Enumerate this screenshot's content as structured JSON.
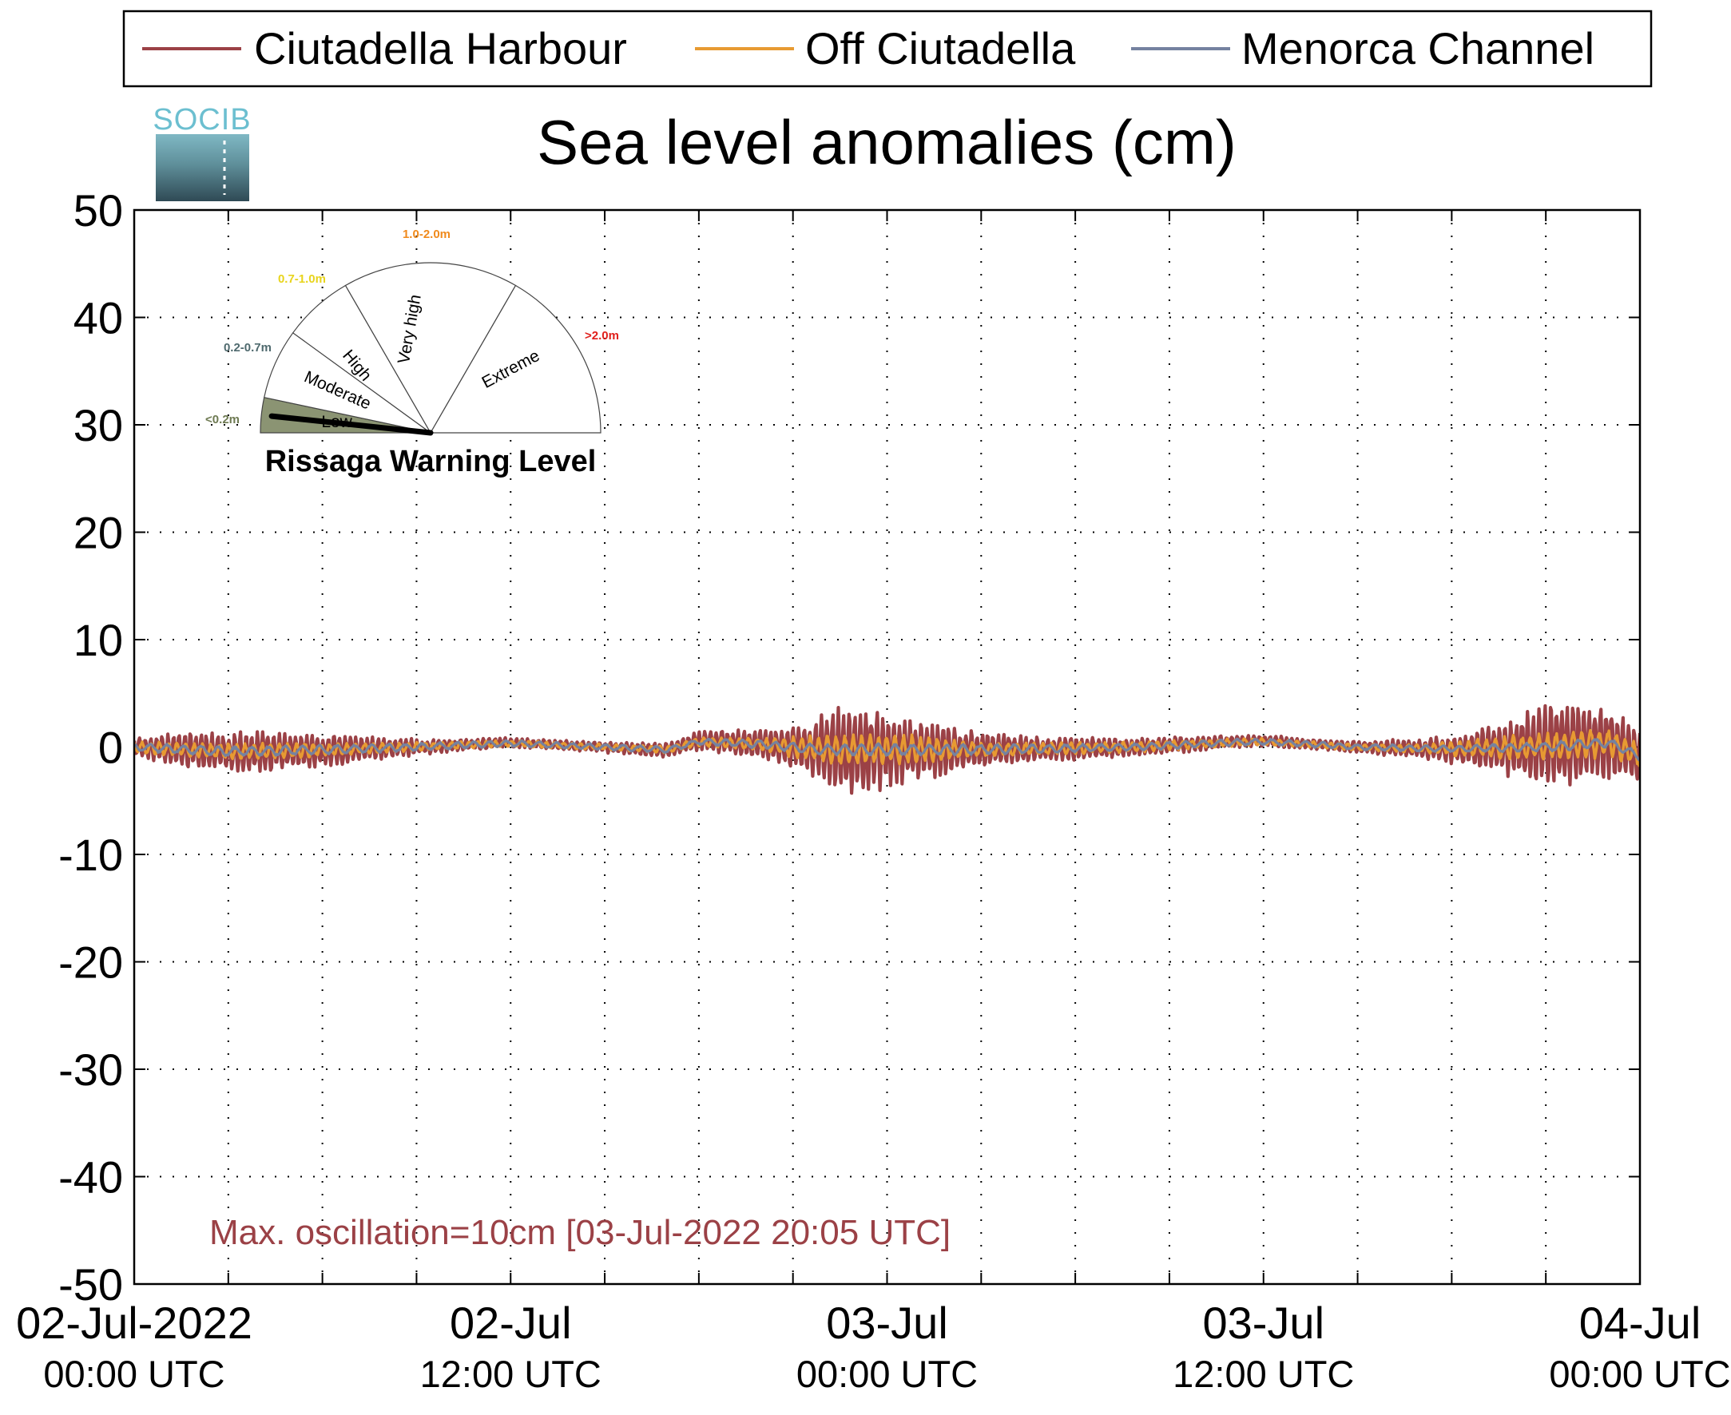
{
  "chart_data": {
    "type": "line",
    "title": "Sea level anomalies (cm)",
    "xlabel": "",
    "ylabel": "",
    "ylim": [
      -50,
      50
    ],
    "yticks": [
      -50,
      -40,
      -30,
      -20,
      -10,
      0,
      10,
      20,
      30,
      40,
      50
    ],
    "x_unit": "hours since 02-Jul-2022 00:00 UTC",
    "xlim": [
      0,
      48
    ],
    "x_major_ticks": [
      {
        "x": 0,
        "date": "02-Jul-2022",
        "time": "00:00 UTC"
      },
      {
        "x": 12,
        "date": "02-Jul",
        "time": "12:00 UTC"
      },
      {
        "x": 24,
        "date": "03-Jul",
        "time": "00:00 UTC"
      },
      {
        "x": 36,
        "date": "03-Jul",
        "time": "12:00 UTC"
      },
      {
        "x": 48,
        "date": "04-Jul",
        "time": "00:00 UTC"
      }
    ],
    "grid": true,
    "legend_position": "top",
    "annotation": "Max. oscillation=10cm [03-Jul-2022 20:05 UTC]",
    "series": [
      {
        "name": "Ciutadella Harbour",
        "color": "#9b4146",
        "amplitude_envelope_cm": [
          {
            "x": 0,
            "a": 1.0
          },
          {
            "x": 2,
            "a": 1.8
          },
          {
            "x": 4,
            "a": 2.0
          },
          {
            "x": 6,
            "a": 1.6
          },
          {
            "x": 8,
            "a": 1.0
          },
          {
            "x": 10,
            "a": 0.6
          },
          {
            "x": 12,
            "a": 0.5
          },
          {
            "x": 14,
            "a": 0.5
          },
          {
            "x": 16,
            "a": 0.6
          },
          {
            "x": 18,
            "a": 0.9
          },
          {
            "x": 20,
            "a": 1.4
          },
          {
            "x": 21.5,
            "a": 2.6
          },
          {
            "x": 22.5,
            "a": 4.6
          },
          {
            "x": 23.5,
            "a": 4.0
          },
          {
            "x": 24.5,
            "a": 3.2
          },
          {
            "x": 25.5,
            "a": 2.8
          },
          {
            "x": 27,
            "a": 1.6
          },
          {
            "x": 29,
            "a": 1.2
          },
          {
            "x": 31,
            "a": 1.0
          },
          {
            "x": 33,
            "a": 0.8
          },
          {
            "x": 35,
            "a": 0.6
          },
          {
            "x": 37,
            "a": 0.5
          },
          {
            "x": 39,
            "a": 0.6
          },
          {
            "x": 41,
            "a": 0.9
          },
          {
            "x": 42.5,
            "a": 1.6
          },
          {
            "x": 44,
            "a": 3.0
          },
          {
            "x": 45,
            "a": 4.2
          },
          {
            "x": 46,
            "a": 3.8
          },
          {
            "x": 47,
            "a": 3.6
          },
          {
            "x": 48,
            "a": 2.8
          }
        ],
        "mean_cm": [
          {
            "x": 0,
            "y": 0.0
          },
          {
            "x": 3,
            "y": -0.5
          },
          {
            "x": 6,
            "y": -0.3
          },
          {
            "x": 9,
            "y": 0.0
          },
          {
            "x": 12,
            "y": 0.4
          },
          {
            "x": 15,
            "y": 0.0
          },
          {
            "x": 17,
            "y": -0.3
          },
          {
            "x": 18,
            "y": 0.6
          },
          {
            "x": 20,
            "y": 0.3
          },
          {
            "x": 22,
            "y": -0.3
          },
          {
            "x": 24,
            "y": -0.3
          },
          {
            "x": 26,
            "y": -0.3
          },
          {
            "x": 29,
            "y": -0.2
          },
          {
            "x": 32,
            "y": 0.0
          },
          {
            "x": 35,
            "y": 0.5
          },
          {
            "x": 36,
            "y": 0.6
          },
          {
            "x": 39,
            "y": 0.0
          },
          {
            "x": 42,
            "y": -0.2
          },
          {
            "x": 45,
            "y": 0.0
          },
          {
            "x": 47,
            "y": 0.5
          },
          {
            "x": 48,
            "y": -1.0
          }
        ],
        "max_cm": 4.5,
        "min_cm": -5.3
      },
      {
        "name": "Off Ciutadella",
        "color": "#e79a32",
        "amplitude_envelope_cm": [
          {
            "x": 0,
            "a": 0.6
          },
          {
            "x": 4,
            "a": 0.8
          },
          {
            "x": 8,
            "a": 0.5
          },
          {
            "x": 12,
            "a": 0.3
          },
          {
            "x": 16,
            "a": 0.3
          },
          {
            "x": 20,
            "a": 0.6
          },
          {
            "x": 22.5,
            "a": 1.6
          },
          {
            "x": 24.5,
            "a": 1.5
          },
          {
            "x": 27,
            "a": 0.7
          },
          {
            "x": 32,
            "a": 0.5
          },
          {
            "x": 37,
            "a": 0.3
          },
          {
            "x": 41,
            "a": 0.4
          },
          {
            "x": 44,
            "a": 1.2
          },
          {
            "x": 46,
            "a": 1.5
          },
          {
            "x": 48,
            "a": 1.2
          }
        ],
        "max_cm": 2.5,
        "min_cm": -3.0
      },
      {
        "name": "Menorca Channel",
        "color": "#7582a0",
        "amplitude_envelope_cm": [
          {
            "x": 0,
            "a": 0.4
          },
          {
            "x": 4,
            "a": 0.5
          },
          {
            "x": 8,
            "a": 0.4
          },
          {
            "x": 12,
            "a": 0.3
          },
          {
            "x": 18,
            "a": 0.3
          },
          {
            "x": 22,
            "a": 0.5
          },
          {
            "x": 24,
            "a": 0.6
          },
          {
            "x": 30,
            "a": 0.4
          },
          {
            "x": 36,
            "a": 0.3
          },
          {
            "x": 42,
            "a": 0.3
          },
          {
            "x": 46,
            "a": 0.5
          },
          {
            "x": 48,
            "a": 0.4
          }
        ],
        "max_cm": 1.5,
        "min_cm": -1.5
      }
    ]
  },
  "logo": {
    "text": "SOCIB"
  },
  "gauge": {
    "title": "Rissaga Warning Level",
    "indicated_level": "Low",
    "indicated_value_m": 0.1,
    "segments": [
      {
        "name": "Low",
        "range": "<0.2m",
        "range_color": "#6e7a52",
        "fill": "#8b9473",
        "active": true
      },
      {
        "name": "Moderate",
        "range": "0.2-0.7m",
        "range_color": "#4f6a6e",
        "fill": "#ffffff",
        "active": false
      },
      {
        "name": "High",
        "range": "0.7-1.0m",
        "range_color": "#e8d41c",
        "fill": "#ffffff",
        "active": false
      },
      {
        "name": "Very high",
        "range": "1.0-2.0m",
        "range_color": "#f08a1c",
        "fill": "#ffffff",
        "active": false
      },
      {
        "name": "Extreme",
        "range": ">2.0m",
        "range_color": "#e0201c",
        "fill": "#ffffff",
        "active": false
      }
    ]
  }
}
